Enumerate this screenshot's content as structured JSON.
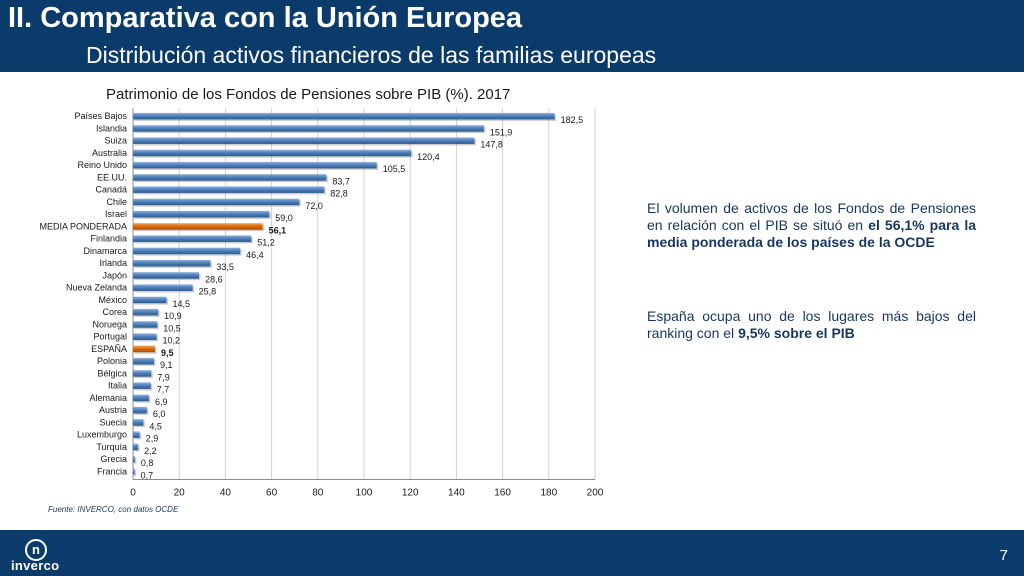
{
  "header": {
    "title": "II. Comparativa con la Unión Europea",
    "subtitle": "Distribución activos financieros de las familias europeas"
  },
  "chart_data": {
    "type": "bar",
    "orientation": "horizontal",
    "title": "Patrimonio de los Fondos de Pensiones sobre PIB (%). 2017",
    "categories": [
      "Países Bajos",
      "Islandia",
      "Suiza",
      "Australia",
      "Reino Unido",
      "EE.UU.",
      "Canadá",
      "Chile",
      "Israel",
      "MEDIA PONDERADA",
      "Finlandia",
      "Dinamarca",
      "Irlanda",
      "Japón",
      "Nueva Zelanda",
      "México",
      "Corea",
      "Noruega",
      "Portugal",
      "ESPAÑA",
      "Polonia",
      "Bélgica",
      "Italia",
      "Alemania",
      "Austria",
      "Suecia",
      "Luxemburgo",
      "Turquía",
      "Grecia",
      "Francia"
    ],
    "values": [
      182.5,
      151.9,
      147.8,
      120.4,
      105.5,
      83.7,
      82.8,
      72.0,
      59.0,
      56.1,
      51.2,
      46.4,
      33.5,
      28.6,
      25.8,
      14.5,
      10.9,
      10.5,
      10.2,
      9.5,
      9.1,
      7.9,
      7.7,
      6.9,
      6.0,
      4.5,
      2.9,
      2.2,
      0.8,
      0.7
    ],
    "value_labels": [
      "182,5",
      "151,9",
      "147,8",
      "120,4",
      "105,5",
      "83,7",
      "82,8",
      "72,0",
      "59,0",
      "56,1",
      "51,2",
      "46,4",
      "33,5",
      "28,6",
      "25,8",
      "14,5",
      "10,9",
      "10,5",
      "10,2",
      "9,5",
      "9,1",
      "7,9",
      "7,7",
      "6,9",
      "6,0",
      "4,5",
      "2,9",
      "2,2",
      "0,8",
      "0,7"
    ],
    "highlighted": [
      "MEDIA PONDERADA",
      "ESPAÑA"
    ],
    "xlim": [
      0,
      200
    ],
    "xticks": [
      0,
      20,
      40,
      60,
      80,
      100,
      120,
      140,
      160,
      180,
      200
    ],
    "grid": "vertical",
    "colors": {
      "bar": "#4f81bd",
      "highlight": "#e36c09"
    }
  },
  "source": "Fuente: INVERCO, con datos OCDE",
  "text1": {
    "part1": "El volumen de activos de los Fondos de Pensiones en relación con el PIB se situó en ",
    "bold": "el 56,1% para la media ponderada de los países de la OCDE"
  },
  "text2": {
    "part1": "España ocupa uno de los lugares más bajos del ranking con el ",
    "bold": "9,5% sobre el PIB"
  },
  "footer": {
    "logo_icon": "inverco-logo-icon",
    "logo_glyph": "n",
    "logo_text": "inverco",
    "page_number": "7"
  }
}
